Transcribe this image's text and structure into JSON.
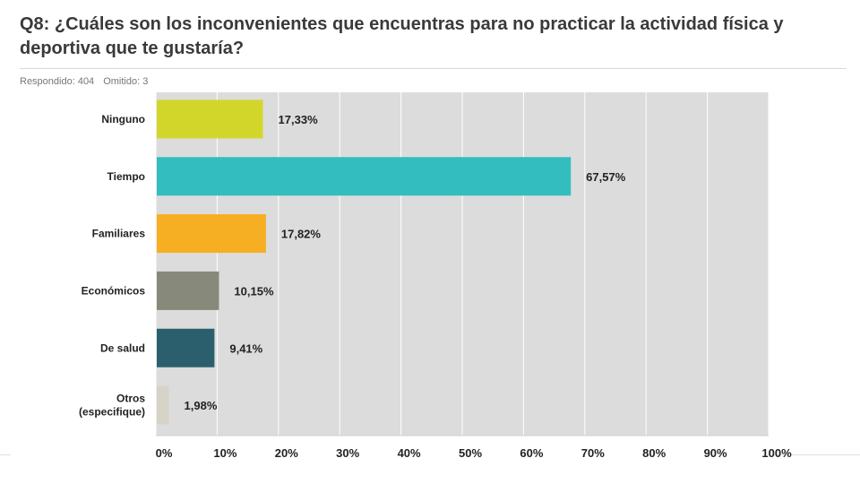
{
  "header": {
    "title": "Q8: ¿Cuáles son los inconvenientes que encuentras para no practicar la actividad física y deportiva que te gustaría?",
    "answered": "Respondido: 404",
    "skipped": "Omitido: 3"
  },
  "chart_data": {
    "type": "bar",
    "orientation": "horizontal",
    "categories": [
      [
        "Ninguno"
      ],
      [
        "Tiempo"
      ],
      [
        "Familiares"
      ],
      [
        "Económicos"
      ],
      [
        "De salud"
      ],
      [
        "Otros",
        "(especifique)"
      ]
    ],
    "values": [
      17.33,
      67.57,
      17.82,
      10.15,
      9.41,
      1.98
    ],
    "value_labels": [
      "17,33%",
      "67,57%",
      "17,82%",
      "10,15%",
      "9,41%",
      "1,98%"
    ],
    "colors": [
      "#d2d62a",
      "#33bdbf",
      "#f6ae23",
      "#87897a",
      "#2b5f6e",
      "#d6d3c7"
    ],
    "xlim": [
      0,
      100
    ],
    "xticks": [
      "0%",
      "10%",
      "20%",
      "30%",
      "40%",
      "50%",
      "60%",
      "70%",
      "80%",
      "90%",
      "100%"
    ],
    "plot_background": "#dcdcdc",
    "grid": true
  }
}
